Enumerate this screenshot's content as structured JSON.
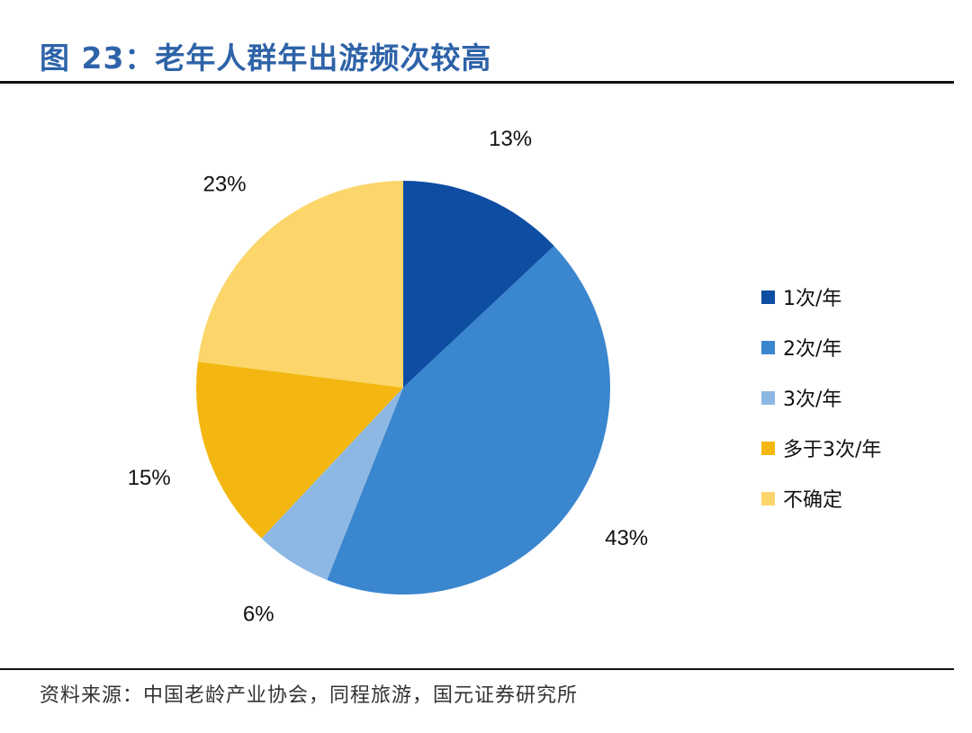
{
  "figure": {
    "title": "图 23：老年人群年出游频次较高",
    "source": "资料来源：中国老龄产业协会，同程旅游，国元证券研究所"
  },
  "chart_data": {
    "type": "pie",
    "title": "",
    "categories": [
      "1次/年",
      "2次/年",
      "3次/年",
      "多于3次/年",
      "不确定"
    ],
    "values": [
      13,
      43,
      6,
      15,
      23
    ],
    "value_labels": [
      "13%",
      "43%",
      "6%",
      "15%",
      "23%"
    ],
    "unit": "%",
    "colors": [
      "#0d4ea3",
      "#3a86cf",
      "#8db8e3",
      "#f4b711",
      "#fcd66a"
    ],
    "start_angle": "12 o'clock, clockwise",
    "legend_position": "right"
  }
}
